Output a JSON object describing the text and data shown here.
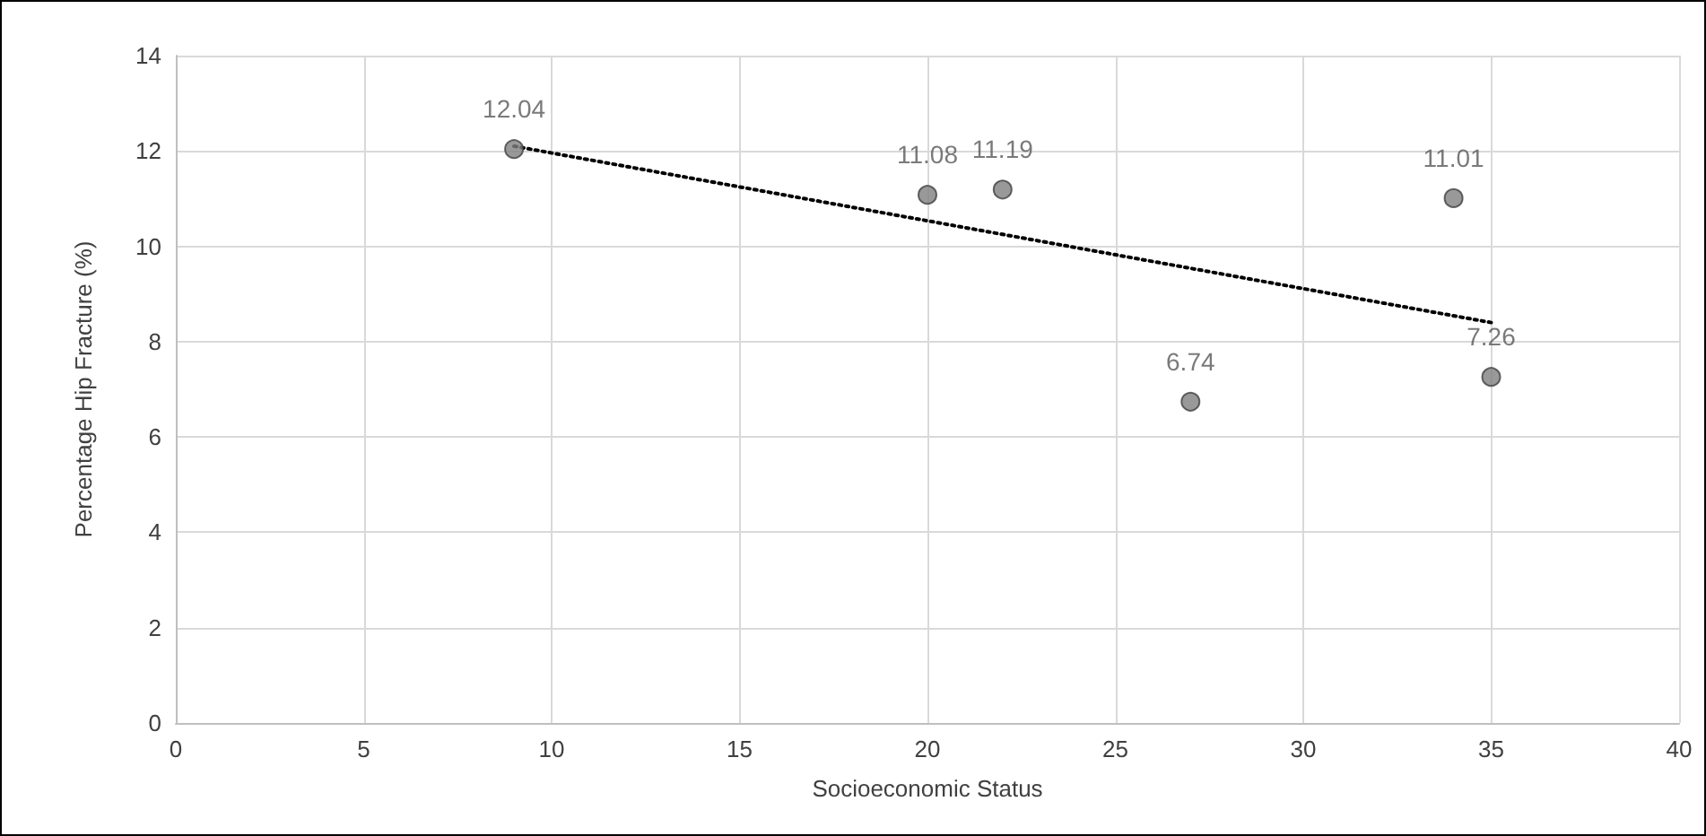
{
  "chart_data": {
    "type": "scatter",
    "xlabel": "Socioeconomic Status",
    "ylabel": "Percentage Hip Fracture (%)",
    "x": [
      9,
      20,
      22,
      27,
      34,
      35
    ],
    "series": [
      {
        "color": "#808080",
        "values": [
          12.04,
          11.08,
          11.19,
          6.74,
          11.01,
          7.26
        ],
        "value_labels": [
          "12.04",
          "11.08",
          "11.19",
          "6.74",
          "11.01",
          "7.26"
        ]
      },
      {
        "type": "line",
        "color": "#000000",
        "x": [
          9,
          35
        ],
        "values": [
          12.1,
          8.4
        ],
        "line_style": "dotted",
        "marker": "none"
      }
    ],
    "xlim": [
      0,
      40
    ],
    "xticks": [
      0,
      5,
      10,
      15,
      20,
      25,
      30,
      35,
      40
    ],
    "ylim": [
      0,
      14
    ],
    "yticks": [
      0,
      2,
      4,
      6,
      8,
      10,
      12,
      14
    ],
    "grid": true,
    "marker": "circle"
  }
}
